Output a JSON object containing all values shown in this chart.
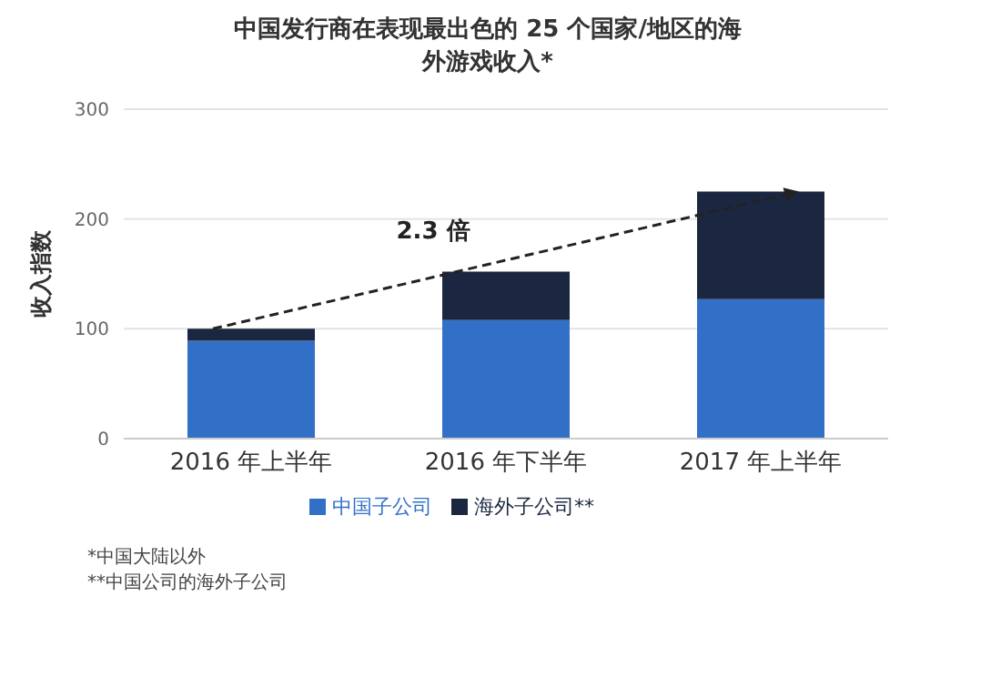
{
  "chart_data": {
    "type": "bar",
    "title": "中国发行商在表现最出色的 25 个国家/地区的海外游戏收入*",
    "ylabel": "收入指数",
    "categories": [
      "2016 年上半年",
      "2016 年下半年",
      "2017 年上半年"
    ],
    "series": [
      {
        "name": "中国子公司",
        "color": "#3270c8",
        "values": [
          89,
          108,
          127
        ]
      },
      {
        "name": "海外子公司**",
        "color": "#1b2741",
        "values": [
          11,
          44,
          98
        ]
      }
    ],
    "stacked": true,
    "ylim": [
      0,
      300
    ],
    "yticks": [
      0,
      100,
      200,
      300
    ],
    "grid": "y",
    "legend": "bottom",
    "annotations": [
      "2.3 倍",
      "*中国大陆以外",
      "**中国公司的海外子公司"
    ]
  }
}
